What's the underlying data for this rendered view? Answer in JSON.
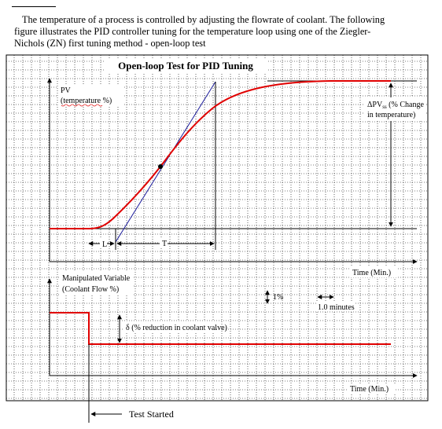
{
  "intro": {
    "line1": "The temperature of a process is controlled by adjusting the flowrate of coolant. The following",
    "line2": "figure illustrates the PID controller tuning for the temperature loop using one of the Ziegler-",
    "line3": "Nichols (ZN) first tuning method - open-loop test"
  },
  "figure": {
    "title": "Open-loop Test for PID Tuning",
    "pv_label_line1": "PV",
    "pv_label_line2": "(temperature %)",
    "delta_pv_line1": "ΔPV",
    "delta_pv_subscript": "ss",
    "delta_pv_line1_rest": " (% Change",
    "delta_pv_line2": "in temperature)",
    "l_label": "L",
    "t_label": "T",
    "time_label_top": "Time (Min.)",
    "mv_label_line1": "Manipulated Variable",
    "mv_label_line2": "(Coolant Flow %)",
    "scale_percent": "1%",
    "scale_minutes": "1.0 minutes",
    "delta_label": "δ (% reduction in coolant valve)",
    "time_label_bottom": "Time (Min.)",
    "test_started": "Test Started"
  },
  "colors": {
    "response_curve": "#e00000",
    "tangent_line": "#1c1c9c",
    "grid": "#000000"
  }
}
